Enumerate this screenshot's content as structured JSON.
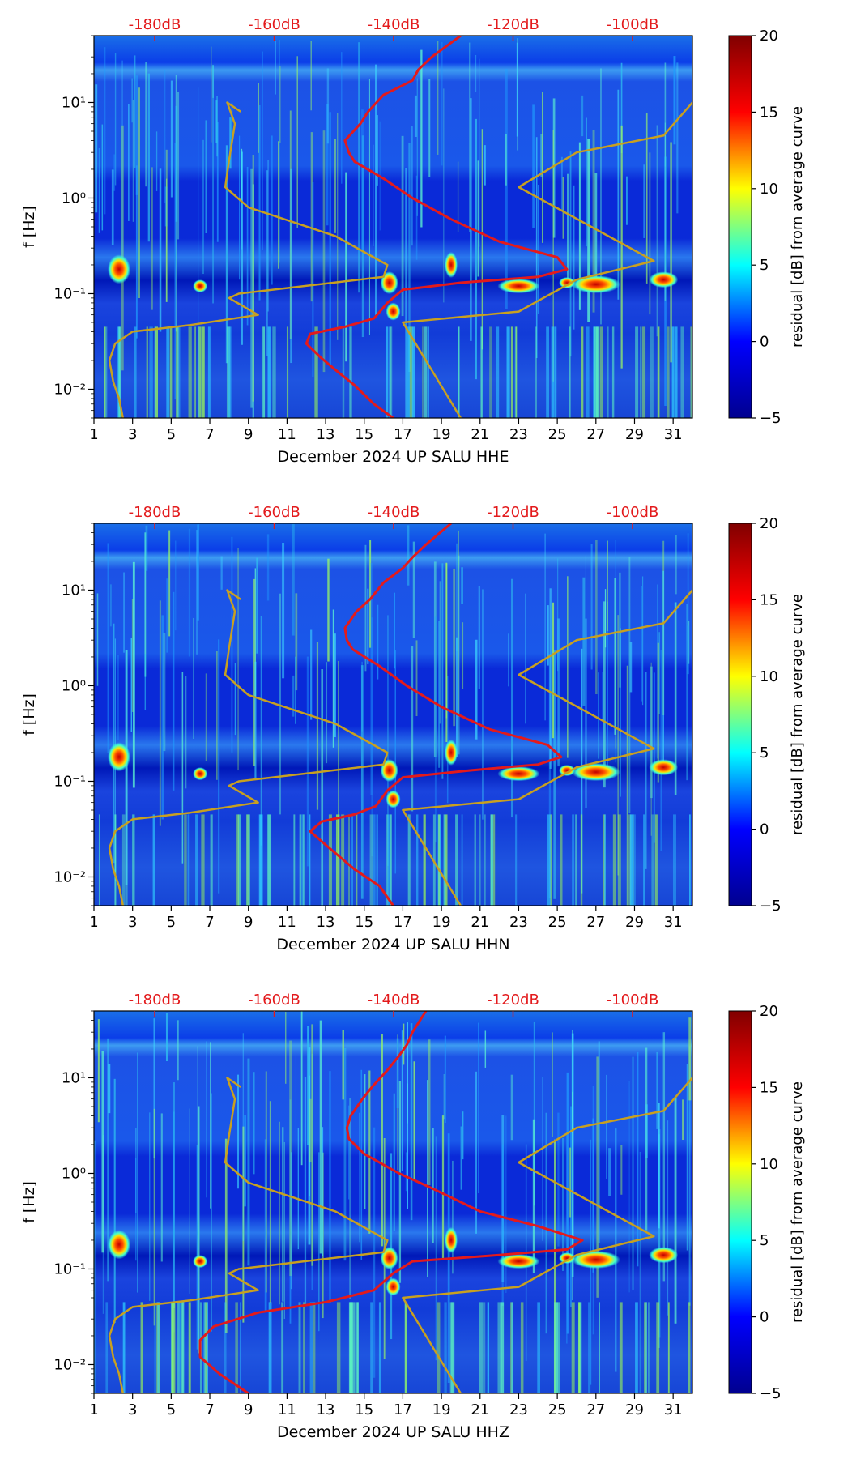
{
  "colors": {
    "accent_red": "#e31a1c",
    "nlnm_color": "#c8a020",
    "colormap": [
      "#00008f",
      "#0000ff",
      "#00ffff",
      "#ffff00",
      "#ff0000",
      "#800000"
    ]
  },
  "chart_data": [
    {
      "type": "heatmap",
      "title": "",
      "xlabel": "December 2024 UP SALU  HHE",
      "ylabel": "f [Hz]",
      "xlim": [
        1,
        32
      ],
      "xticks": [
        1,
        3,
        5,
        7,
        9,
        11,
        13,
        15,
        17,
        19,
        21,
        23,
        25,
        27,
        29,
        31
      ],
      "ylim": [
        0.005,
        50
      ],
      "yscale": "log",
      "yticks": [
        0.01,
        0.1,
        1,
        10
      ],
      "ytick_labels": [
        "10⁻²",
        "10⁻¹",
        "10⁰",
        "10¹"
      ],
      "top_axis_labels": [
        "-180dB",
        "-160dB",
        "-140dB",
        "-120dB",
        "-100dB"
      ],
      "colorbar": {
        "label": "residual [dB] from average curve",
        "min": -5,
        "max": 20,
        "ticks": [
          -5,
          0,
          5,
          10,
          15,
          20
        ]
      },
      "series": [
        {
          "name": "mean PSD",
          "color": "#e31a1c",
          "points": [
            [
              16.5,
              0.005
            ],
            [
              15.5,
              0.007
            ],
            [
              14.5,
              0.011
            ],
            [
              13.5,
              0.016
            ],
            [
              12.8,
              0.021
            ],
            [
              12,
              0.03
            ],
            [
              12.2,
              0.038
            ],
            [
              14,
              0.045
            ],
            [
              15.5,
              0.055
            ],
            [
              16.2,
              0.08
            ],
            [
              17,
              0.11
            ],
            [
              20,
              0.13
            ],
            [
              24,
              0.15
            ],
            [
              25.5,
              0.18
            ],
            [
              25,
              0.24
            ],
            [
              22,
              0.35
            ],
            [
              19.5,
              0.6
            ],
            [
              17.5,
              1.0
            ],
            [
              16,
              1.6
            ],
            [
              14.5,
              2.4
            ],
            [
              14.2,
              3
            ],
            [
              14,
              4
            ],
            [
              14.8,
              6
            ],
            [
              15.2,
              8
            ],
            [
              16,
              12
            ],
            [
              17.5,
              17
            ],
            [
              17.8,
              22
            ],
            [
              18.5,
              30
            ],
            [
              20,
              50
            ]
          ]
        },
        {
          "name": "NLNM / NHNM",
          "color": "#c8a020",
          "points": [
            [
              2.5,
              0.005
            ],
            [
              2.3,
              0.008
            ],
            [
              2,
              0.012
            ],
            [
              1.8,
              0.02
            ],
            [
              2.1,
              0.03
            ],
            [
              3,
              0.04
            ],
            [
              6,
              0.047
            ],
            [
              9.5,
              0.06
            ],
            [
              8,
              0.09
            ],
            [
              8.5,
              0.1
            ],
            [
              16,
              0.15
            ],
            [
              16.2,
              0.2
            ],
            [
              13.5,
              0.4
            ],
            [
              9,
              0.8
            ],
            [
              7.8,
              1.3
            ],
            [
              8,
              2.5
            ],
            [
              8.3,
              6
            ],
            [
              7.9,
              10
            ],
            [
              8.6,
              8
            ]
          ]
        },
        {
          "name": "NHNM",
          "color": "#c8a020",
          "points": [
            [
              20,
              0.005
            ],
            [
              17,
              0.05
            ],
            [
              23,
              0.065
            ],
            [
              26,
              0.14
            ],
            [
              30,
              0.22
            ],
            [
              23,
              1.3
            ],
            [
              26,
              3
            ],
            [
              30.5,
              4.5
            ],
            [
              32,
              10
            ]
          ]
        }
      ],
      "annotations": [
        "hotspot 2.3d 0.18Hz",
        "hotspot 16.3d 0.13Hz",
        "hotspot 27d 0.12Hz",
        "hotspot 30.5d 0.14Hz"
      ]
    },
    {
      "type": "heatmap",
      "title": "",
      "xlabel": "December 2024 UP SALU  HHN",
      "ylabel": "f [Hz]",
      "xlim": [
        1,
        32
      ],
      "xticks": [
        1,
        3,
        5,
        7,
        9,
        11,
        13,
        15,
        17,
        19,
        21,
        23,
        25,
        27,
        29,
        31
      ],
      "ylim": [
        0.005,
        50
      ],
      "yscale": "log",
      "yticks": [
        0.01,
        0.1,
        1,
        10
      ],
      "ytick_labels": [
        "10⁻²",
        "10⁻¹",
        "10⁰",
        "10¹"
      ],
      "top_axis_labels": [
        "-180dB",
        "-160dB",
        "-140dB",
        "-120dB",
        "-100dB"
      ],
      "colorbar": {
        "label": "residual [dB] from average curve",
        "min": -5,
        "max": 20,
        "ticks": [
          -5,
          0,
          5,
          10,
          15,
          20
        ]
      },
      "series": [
        {
          "name": "mean PSD",
          "color": "#e31a1c",
          "points": [
            [
              16.5,
              0.005
            ],
            [
              15.8,
              0.008
            ],
            [
              14.5,
              0.012
            ],
            [
              13.2,
              0.02
            ],
            [
              12.2,
              0.03
            ],
            [
              12.8,
              0.038
            ],
            [
              14.5,
              0.045
            ],
            [
              15.6,
              0.055
            ],
            [
              16.2,
              0.08
            ],
            [
              17,
              0.11
            ],
            [
              20.5,
              0.13
            ],
            [
              24,
              0.15
            ],
            [
              25.2,
              0.18
            ],
            [
              24.5,
              0.24
            ],
            [
              21.5,
              0.35
            ],
            [
              19,
              0.6
            ],
            [
              17.2,
              1.0
            ],
            [
              15.8,
              1.6
            ],
            [
              14.4,
              2.4
            ],
            [
              14.1,
              3
            ],
            [
              14,
              4
            ],
            [
              14.6,
              6
            ],
            [
              15.3,
              8
            ],
            [
              16,
              12
            ],
            [
              17,
              17
            ],
            [
              17.5,
              22
            ],
            [
              18.2,
              30
            ],
            [
              19.5,
              50
            ]
          ]
        },
        {
          "name": "NLNM / NHNM",
          "color": "#c8a020",
          "points": [
            [
              2.5,
              0.005
            ],
            [
              2.3,
              0.008
            ],
            [
              2,
              0.012
            ],
            [
              1.8,
              0.02
            ],
            [
              2.1,
              0.03
            ],
            [
              3,
              0.04
            ],
            [
              6,
              0.047
            ],
            [
              9.5,
              0.06
            ],
            [
              8,
              0.09
            ],
            [
              8.5,
              0.1
            ],
            [
              16,
              0.15
            ],
            [
              16.2,
              0.2
            ],
            [
              13.5,
              0.4
            ],
            [
              9,
              0.8
            ],
            [
              7.8,
              1.3
            ],
            [
              8,
              2.5
            ],
            [
              8.3,
              6
            ],
            [
              7.9,
              10
            ],
            [
              8.6,
              8
            ]
          ]
        },
        {
          "name": "NHNM",
          "color": "#c8a020",
          "points": [
            [
              20,
              0.005
            ],
            [
              17,
              0.05
            ],
            [
              23,
              0.065
            ],
            [
              26,
              0.14
            ],
            [
              30,
              0.22
            ],
            [
              23,
              1.3
            ],
            [
              26,
              3
            ],
            [
              30.5,
              4.5
            ],
            [
              32,
              10
            ]
          ]
        }
      ],
      "annotations": [
        "hotspot 2.3d 0.18Hz",
        "hotspot 16.3d 0.13Hz",
        "hotspot 27d 0.12Hz",
        "hotspot 30.5d 0.14Hz"
      ]
    },
    {
      "type": "heatmap",
      "title": "",
      "xlabel": "December 2024 UP SALU  HHZ",
      "ylabel": "f [Hz]",
      "xlim": [
        1,
        32
      ],
      "xticks": [
        1,
        3,
        5,
        7,
        9,
        11,
        13,
        15,
        17,
        19,
        21,
        23,
        25,
        27,
        29,
        31
      ],
      "ylim": [
        0.005,
        50
      ],
      "yscale": "log",
      "yticks": [
        0.01,
        0.1,
        1,
        10
      ],
      "ytick_labels": [
        "10⁻²",
        "10⁻¹",
        "10⁰",
        "10¹"
      ],
      "top_axis_labels": [
        "-180dB",
        "-160dB",
        "-140dB",
        "-120dB",
        "-100dB"
      ],
      "colorbar": {
        "label": "residual [dB] from average curve",
        "min": -5,
        "max": 20,
        "ticks": [
          -5,
          0,
          5,
          10,
          15,
          20
        ]
      },
      "series": [
        {
          "name": "mean PSD",
          "color": "#e31a1c",
          "points": [
            [
              9,
              0.005
            ],
            [
              7.5,
              0.008
            ],
            [
              6.5,
              0.012
            ],
            [
              6.5,
              0.018
            ],
            [
              7.2,
              0.025
            ],
            [
              9.5,
              0.035
            ],
            [
              13,
              0.045
            ],
            [
              15.5,
              0.06
            ],
            [
              16.5,
              0.09
            ],
            [
              17.5,
              0.12
            ],
            [
              22,
              0.14
            ],
            [
              25.5,
              0.16
            ],
            [
              26.3,
              0.2
            ],
            [
              24,
              0.28
            ],
            [
              21,
              0.4
            ],
            [
              18.5,
              0.7
            ],
            [
              16.8,
              1.0
            ],
            [
              15,
              1.6
            ],
            [
              14.2,
              2.3
            ],
            [
              14.1,
              3
            ],
            [
              14.3,
              4
            ],
            [
              14.9,
              6
            ],
            [
              15.4,
              8
            ],
            [
              16.2,
              12
            ],
            [
              16.8,
              17
            ],
            [
              17.2,
              22
            ],
            [
              17.5,
              30
            ],
            [
              18.2,
              50
            ]
          ]
        },
        {
          "name": "NLNM / NHNM",
          "color": "#c8a020",
          "points": [
            [
              2.5,
              0.005
            ],
            [
              2.3,
              0.008
            ],
            [
              2,
              0.012
            ],
            [
              1.8,
              0.02
            ],
            [
              2.1,
              0.03
            ],
            [
              3,
              0.04
            ],
            [
              6,
              0.047
            ],
            [
              9.5,
              0.06
            ],
            [
              8,
              0.09
            ],
            [
              8.5,
              0.1
            ],
            [
              16,
              0.15
            ],
            [
              16.2,
              0.2
            ],
            [
              13.5,
              0.4
            ],
            [
              9,
              0.8
            ],
            [
              7.8,
              1.3
            ],
            [
              8,
              2.5
            ],
            [
              8.3,
              6
            ],
            [
              7.9,
              10
            ],
            [
              8.6,
              8
            ]
          ]
        },
        {
          "name": "NHNM",
          "color": "#c8a020",
          "points": [
            [
              20,
              0.005
            ],
            [
              17,
              0.05
            ],
            [
              23,
              0.065
            ],
            [
              26,
              0.14
            ],
            [
              30,
              0.22
            ],
            [
              23,
              1.3
            ],
            [
              26,
              3
            ],
            [
              30.5,
              4.5
            ],
            [
              32,
              10
            ]
          ]
        }
      ],
      "annotations": [
        "hotspot 2.3d 0.18Hz",
        "hotspot 16.3d 0.13Hz",
        "hotspot 27d 0.12Hz",
        "hotspot 30.5d 0.14Hz"
      ]
    }
  ]
}
